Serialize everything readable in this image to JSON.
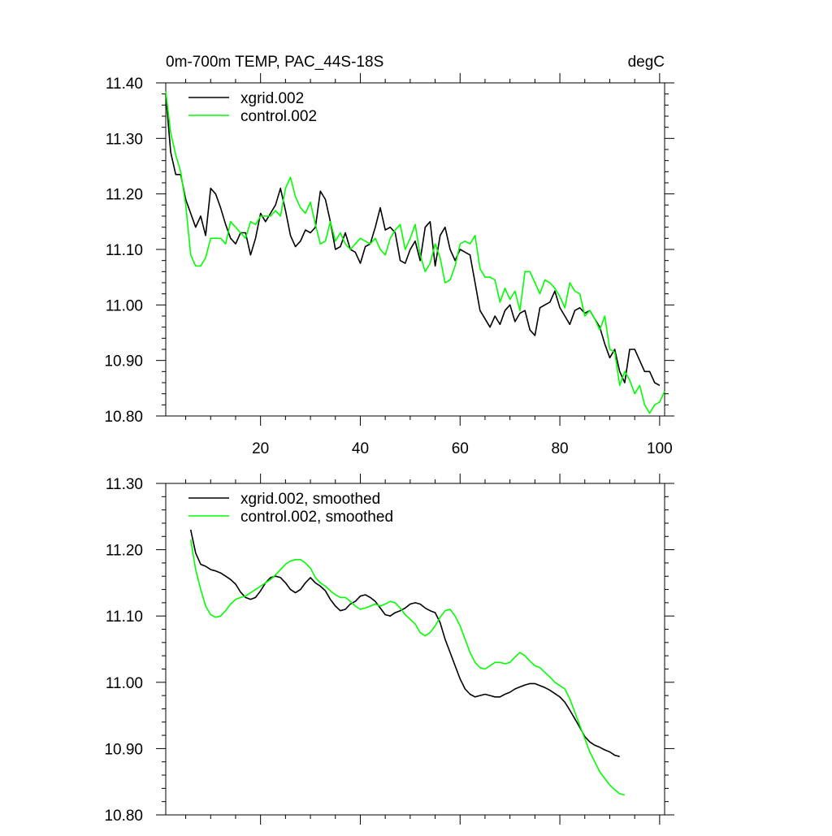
{
  "chart_data": [
    {
      "type": "line",
      "title": "0m-700m TEMP, PAC_44S-18S",
      "units": "degC",
      "xlabel": "",
      "ylabel": "",
      "xlim": [
        1,
        101
      ],
      "ylim": [
        10.8,
        11.4
      ],
      "xticks": [
        20,
        40,
        60,
        80,
        100
      ],
      "xtick_labels": [
        "20",
        "40",
        "60",
        "80",
        "100"
      ],
      "yticks": [
        10.8,
        10.9,
        11.0,
        11.1,
        11.2,
        11.3,
        11.4
      ],
      "ytick_labels": [
        "10.80",
        "10.90",
        "11.00",
        "11.10",
        "11.20",
        "11.30",
        "11.40"
      ],
      "legend_position": "top-left",
      "grid": false,
      "series": [
        {
          "name": "xgrid.002",
          "color": "#000000",
          "x_start": 1,
          "values": [
            11.38,
            11.275,
            11.235,
            11.235,
            11.19,
            11.165,
            11.14,
            11.16,
            11.125,
            11.21,
            11.2,
            11.175,
            11.145,
            11.12,
            11.11,
            11.13,
            11.13,
            11.09,
            11.12,
            11.165,
            11.15,
            11.165,
            11.18,
            11.21,
            11.17,
            11.125,
            11.105,
            11.115,
            11.135,
            11.13,
            11.14,
            11.205,
            11.19,
            11.15,
            11.1,
            11.105,
            11.13,
            11.1,
            11.095,
            11.075,
            11.105,
            11.11,
            11.14,
            11.175,
            11.135,
            11.14,
            11.13,
            11.08,
            11.075,
            11.1,
            11.115,
            11.08,
            11.14,
            11.15,
            11.07,
            11.125,
            11.14,
            11.1,
            11.08,
            11.1,
            11.095,
            11.09,
            11.04,
            10.99,
            10.975,
            10.96,
            10.98,
            10.965,
            10.99,
            11.0,
            10.97,
            10.985,
            10.99,
            10.955,
            10.945,
            10.995,
            11.0,
            11.005,
            11.025,
            10.995,
            10.98,
            10.965,
            10.99,
            10.995,
            10.985,
            10.99,
            10.975,
            10.96,
            10.93,
            10.905,
            10.92,
            10.88,
            10.86,
            10.92,
            10.92,
            10.9,
            10.88,
            10.88,
            10.86,
            10.855
          ]
        },
        {
          "name": "control.002",
          "color": "#00ff00",
          "x_start": 1,
          "values": [
            11.385,
            11.31,
            11.27,
            11.24,
            11.18,
            11.09,
            11.07,
            11.07,
            11.085,
            11.12,
            11.12,
            11.12,
            11.11,
            11.15,
            11.14,
            11.13,
            11.12,
            11.15,
            11.145,
            11.16,
            11.16,
            11.16,
            11.17,
            11.16,
            11.21,
            11.23,
            11.195,
            11.175,
            11.165,
            11.185,
            11.145,
            11.11,
            11.115,
            11.15,
            11.115,
            11.13,
            11.11,
            11.1,
            11.11,
            11.12,
            11.115,
            11.11,
            11.12,
            11.1,
            11.09,
            11.12,
            11.135,
            11.145,
            11.1,
            11.12,
            11.145,
            11.09,
            11.06,
            11.075,
            11.11,
            11.085,
            11.04,
            11.045,
            11.07,
            11.11,
            11.115,
            11.11,
            11.125,
            11.065,
            11.05,
            11.05,
            11.045,
            11.005,
            11.03,
            11.01,
            11.025,
            10.99,
            11.06,
            11.06,
            11.04,
            11.02,
            11.045,
            11.04,
            11.03,
            11.015,
            10.995,
            11.04,
            11.025,
            11.02,
            10.98,
            10.99,
            10.975,
            10.955,
            10.98,
            10.92,
            10.915,
            10.855,
            10.88,
            10.865,
            10.84,
            10.855,
            10.82,
            10.805,
            10.82,
            10.825,
            10.845
          ]
        }
      ]
    },
    {
      "type": "line",
      "title": "",
      "xlabel": "",
      "ylabel": "",
      "xlim": [
        1,
        101
      ],
      "ylim": [
        10.8,
        11.3
      ],
      "xticks": [
        20,
        40,
        60,
        80,
        100
      ],
      "xtick_labels": [],
      "yticks": [
        10.8,
        10.9,
        11.0,
        11.1,
        11.2,
        11.3
      ],
      "ytick_labels": [
        "10.80",
        "10.90",
        "11.00",
        "11.10",
        "11.20",
        "11.30"
      ],
      "legend_position": "top-left",
      "grid": false,
      "series": [
        {
          "name": "xgrid.002, smoothed",
          "color": "#000000",
          "x_start": 6,
          "values": [
            11.23,
            11.195,
            11.178,
            11.175,
            11.17,
            11.168,
            11.165,
            11.16,
            11.155,
            11.148,
            11.136,
            11.128,
            11.125,
            11.128,
            11.138,
            11.15,
            11.158,
            11.16,
            11.158,
            11.15,
            11.14,
            11.135,
            11.14,
            11.15,
            11.158,
            11.15,
            11.145,
            11.138,
            11.125,
            11.115,
            11.108,
            11.11,
            11.118,
            11.122,
            11.13,
            11.132,
            11.128,
            11.122,
            11.112,
            11.102,
            11.1,
            11.105,
            11.108,
            11.112,
            11.118,
            11.12,
            11.118,
            11.112,
            11.108,
            11.105,
            11.09,
            11.065,
            11.045,
            11.025,
            11.005,
            10.99,
            10.982,
            10.978,
            10.98,
            10.982,
            10.98,
            10.978,
            10.978,
            10.982,
            10.985,
            10.99,
            10.993,
            10.996,
            10.998,
            10.998,
            10.995,
            10.992,
            10.988,
            10.983,
            10.978,
            10.97,
            10.958,
            10.945,
            10.932,
            10.918,
            10.91,
            10.905,
            10.902,
            10.898,
            10.895,
            10.89,
            10.888
          ]
        },
        {
          "name": "control.002, smoothed",
          "color": "#00ff00",
          "x_start": 6,
          "values": [
            11.215,
            11.17,
            11.14,
            11.115,
            11.102,
            11.098,
            11.1,
            11.108,
            11.118,
            11.125,
            11.128,
            11.13,
            11.135,
            11.14,
            11.145,
            11.15,
            11.155,
            11.162,
            11.17,
            11.178,
            11.183,
            11.185,
            11.185,
            11.18,
            11.172,
            11.158,
            11.15,
            11.145,
            11.138,
            11.132,
            11.128,
            11.128,
            11.122,
            11.115,
            11.11,
            11.112,
            11.115,
            11.118,
            11.115,
            11.118,
            11.122,
            11.12,
            11.112,
            11.102,
            11.095,
            11.088,
            11.075,
            11.07,
            11.075,
            11.085,
            11.098,
            11.108,
            11.11,
            11.1,
            11.085,
            11.065,
            11.045,
            11.03,
            11.022,
            11.02,
            11.025,
            11.03,
            11.03,
            11.028,
            11.03,
            11.038,
            11.045,
            11.04,
            11.032,
            11.025,
            11.022,
            11.015,
            11.008,
            11.0,
            10.995,
            10.99,
            10.975,
            10.955,
            10.935,
            10.915,
            10.895,
            10.88,
            10.865,
            10.855,
            10.845,
            10.838,
            10.832,
            10.83
          ]
        }
      ]
    }
  ]
}
